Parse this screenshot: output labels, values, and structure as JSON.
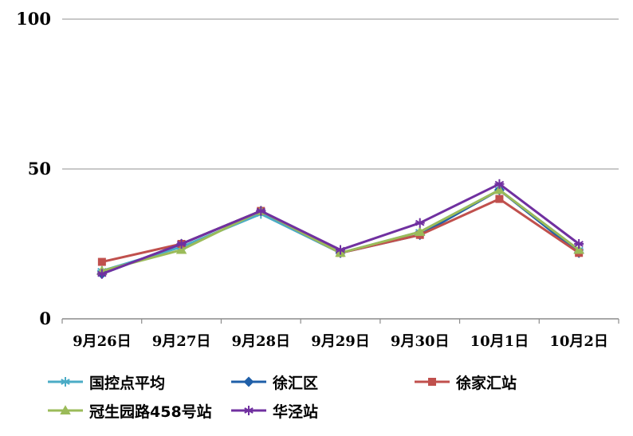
{
  "chart_data": {
    "type": "line",
    "title": "",
    "xlabel": "",
    "ylabel": "",
    "ylim": [
      0,
      100
    ],
    "yticks": [
      "0",
      "50",
      "100"
    ],
    "grid": "horizontal",
    "legend_position": "bottom",
    "categories": [
      "9月26日",
      "9月27日",
      "9月28日",
      "9月29日",
      "9月30日",
      "10月1日",
      "10月2日"
    ],
    "series": [
      {
        "name": "国控点平均",
        "color": "#4bacc6",
        "marker": "star",
        "values": [
          16,
          24,
          35,
          22,
          29,
          43,
          23
        ]
      },
      {
        "name": "徐汇区",
        "color": "#1f5fa8",
        "marker": "diamond",
        "values": [
          15,
          25,
          36,
          22,
          28,
          43,
          22
        ]
      },
      {
        "name": "徐家汇站",
        "color": "#c0504d",
        "marker": "square",
        "values": [
          19,
          25,
          36,
          22,
          28,
          40,
          22
        ]
      },
      {
        "name": "冠生园路458号站",
        "color": "#9bbb59",
        "marker": "triangle",
        "values": [
          16,
          23,
          36,
          22,
          29,
          43,
          23
        ]
      },
      {
        "name": "华泾站",
        "color": "#7030a0",
        "marker": "star",
        "values": [
          15,
          25,
          36,
          23,
          32,
          45,
          25
        ]
      }
    ]
  }
}
